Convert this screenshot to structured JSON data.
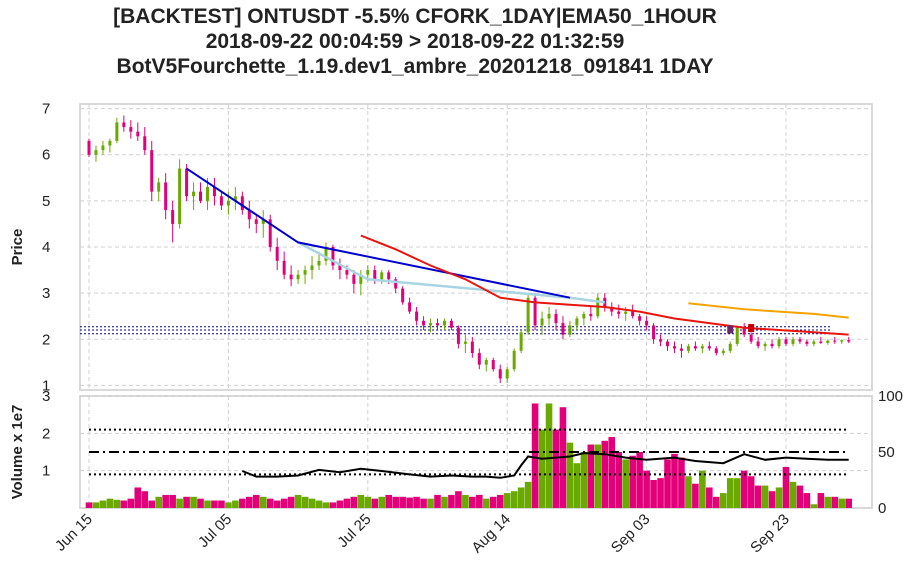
{
  "title_lines": [
    "[BACKTEST] ONTUSDT -5.5% CFORK_1DAY|EMA50_1HOUR",
    "2018-09-22 00:04:59 > 2018-09-22 01:32:59",
    "BotV5Fourchette_1.19.dev1_ambre_20201218_091841 1DAY"
  ],
  "colors": {
    "up": "#6aaa00",
    "down": "#e2007a",
    "trend": "#0000cc",
    "trend_light": "#a9d5e2",
    "ema_red": "#e8140e",
    "ema_orange": "#f5a300",
    "level_dash": "#00008b",
    "grid": "#d0d0d0"
  },
  "chart_data": [
    {
      "type": "candlestick",
      "ylabel": "Price",
      "ylim": [
        0.9,
        7.1
      ],
      "yticks": [
        1,
        2,
        3,
        4,
        5,
        6,
        7
      ],
      "xticks": [
        "Jun 15",
        "Jul 05",
        "Jul 25",
        "Aug 14",
        "Sep 03",
        "Sep 23"
      ],
      "xtick_days": [
        1,
        21,
        41,
        61,
        81,
        101
      ],
      "horizontal_levels": [
        2.27,
        2.2,
        2.12
      ],
      "trend_line": {
        "x": [
          15,
          31,
          70
        ],
        "y": [
          5.7,
          4.1,
          2.9
        ]
      },
      "trend_line_light": {
        "x": [
          31,
          41,
          70,
          75
        ],
        "y": [
          4.1,
          3.3,
          2.9,
          2.8
        ]
      },
      "ema_red": {
        "x": [
          40,
          45,
          50,
          55,
          60,
          65,
          70,
          75,
          80,
          85,
          90,
          95,
          100,
          105,
          110
        ],
        "y": [
          4.25,
          3.95,
          3.6,
          3.3,
          2.9,
          2.8,
          2.75,
          2.7,
          2.6,
          2.45,
          2.35,
          2.25,
          2.2,
          2.15,
          2.1
        ]
      },
      "ema_orange": {
        "x": [
          87,
          95,
          105,
          110
        ],
        "y": [
          2.78,
          2.65,
          2.55,
          2.47
        ]
      },
      "markers": [
        {
          "x": 96,
          "y": 2.2,
          "style": "red-square"
        },
        {
          "x": 93,
          "y": 2.17,
          "style": "purple-square"
        }
      ],
      "candles_ohlc": [
        [
          6.3,
          6.35,
          5.95,
          6.0
        ],
        [
          6.0,
          6.2,
          5.85,
          6.1
        ],
        [
          6.1,
          6.3,
          6.0,
          6.2
        ],
        [
          6.2,
          6.35,
          6.05,
          6.3
        ],
        [
          6.3,
          6.8,
          6.25,
          6.7
        ],
        [
          6.7,
          6.85,
          6.5,
          6.6
        ],
        [
          6.6,
          6.75,
          6.35,
          6.5
        ],
        [
          6.5,
          6.7,
          6.3,
          6.4
        ],
        [
          6.4,
          6.6,
          6.0,
          6.1
        ],
        [
          6.1,
          6.3,
          5.0,
          5.2
        ],
        [
          5.2,
          5.5,
          5.0,
          5.4
        ],
        [
          5.4,
          5.6,
          4.6,
          4.8
        ],
        [
          4.8,
          5.0,
          4.1,
          4.5
        ],
        [
          4.5,
          5.9,
          4.4,
          5.7
        ],
        [
          5.7,
          5.8,
          5.0,
          5.1
        ],
        [
          5.1,
          5.4,
          4.8,
          5.2
        ],
        [
          5.2,
          5.4,
          4.95,
          5.0
        ],
        [
          5.0,
          5.5,
          4.8,
          5.3
        ],
        [
          5.3,
          5.5,
          4.9,
          5.1
        ],
        [
          5.1,
          5.2,
          4.8,
          4.9
        ],
        [
          4.9,
          5.2,
          4.7,
          5.0
        ],
        [
          5.0,
          5.3,
          4.8,
          5.1
        ],
        [
          5.1,
          5.2,
          4.7,
          4.8
        ],
        [
          4.8,
          5.0,
          4.4,
          4.6
        ],
        [
          4.6,
          4.7,
          4.3,
          4.5
        ],
        [
          4.5,
          4.8,
          4.2,
          4.6
        ],
        [
          4.6,
          4.7,
          3.9,
          4.0
        ],
        [
          4.0,
          4.2,
          3.5,
          3.7
        ],
        [
          3.7,
          3.9,
          3.3,
          3.4
        ],
        [
          3.4,
          3.6,
          3.15,
          3.3
        ],
        [
          3.3,
          3.5,
          3.2,
          3.4
        ],
        [
          3.4,
          3.6,
          3.2,
          3.5
        ],
        [
          3.5,
          3.8,
          3.3,
          3.6
        ],
        [
          3.6,
          3.9,
          3.5,
          3.7
        ],
        [
          3.7,
          4.1,
          3.6,
          4.0
        ],
        [
          4.0,
          4.05,
          3.5,
          3.6
        ],
        [
          3.6,
          3.75,
          3.3,
          3.5
        ],
        [
          3.5,
          3.6,
          3.3,
          3.4
        ],
        [
          3.4,
          3.5,
          3.0,
          3.2
        ],
        [
          3.2,
          3.5,
          2.95,
          3.4
        ],
        [
          3.4,
          3.6,
          3.25,
          3.5
        ],
        [
          3.5,
          3.6,
          3.2,
          3.3
        ],
        [
          3.3,
          3.5,
          3.2,
          3.45
        ],
        [
          3.45,
          3.5,
          3.2,
          3.3
        ],
        [
          3.3,
          3.35,
          3.0,
          3.1
        ],
        [
          3.1,
          3.15,
          2.75,
          2.8
        ],
        [
          2.8,
          2.9,
          2.55,
          2.6
        ],
        [
          2.6,
          2.7,
          2.3,
          2.4
        ],
        [
          2.4,
          2.5,
          2.2,
          2.3
        ],
        [
          2.3,
          2.45,
          2.15,
          2.35
        ],
        [
          2.35,
          2.45,
          2.2,
          2.3
        ],
        [
          2.3,
          2.45,
          2.2,
          2.4
        ],
        [
          2.4,
          2.45,
          2.2,
          2.25
        ],
        [
          2.25,
          2.3,
          1.8,
          1.9
        ],
        [
          1.9,
          2.1,
          1.7,
          1.95
        ],
        [
          1.95,
          2.05,
          1.6,
          1.7
        ],
        [
          1.7,
          1.8,
          1.35,
          1.45
        ],
        [
          1.45,
          1.6,
          1.3,
          1.55
        ],
        [
          1.55,
          1.6,
          1.3,
          1.35
        ],
        [
          1.35,
          1.45,
          1.05,
          1.15
        ],
        [
          1.15,
          1.4,
          1.05,
          1.35
        ],
        [
          1.35,
          1.8,
          1.3,
          1.75
        ],
        [
          1.75,
          2.2,
          1.7,
          2.15
        ],
        [
          2.15,
          3.0,
          2.1,
          2.9
        ],
        [
          2.9,
          3.0,
          2.2,
          2.3
        ],
        [
          2.3,
          2.6,
          2.1,
          2.45
        ],
        [
          2.45,
          2.7,
          2.3,
          2.55
        ],
        [
          2.55,
          2.65,
          2.2,
          2.35
        ],
        [
          2.35,
          2.5,
          2.0,
          2.1
        ],
        [
          2.1,
          2.4,
          2.05,
          2.3
        ],
        [
          2.3,
          2.5,
          2.2,
          2.45
        ],
        [
          2.45,
          2.6,
          2.3,
          2.55
        ],
        [
          2.55,
          2.7,
          2.4,
          2.5
        ],
        [
          2.5,
          3.0,
          2.45,
          2.9
        ],
        [
          2.9,
          3.0,
          2.6,
          2.7
        ],
        [
          2.7,
          2.8,
          2.5,
          2.6
        ],
        [
          2.6,
          2.75,
          2.45,
          2.55
        ],
        [
          2.55,
          2.7,
          2.4,
          2.6
        ],
        [
          2.6,
          2.75,
          2.45,
          2.5
        ],
        [
          2.5,
          2.55,
          2.3,
          2.4
        ],
        [
          2.4,
          2.5,
          2.2,
          2.3
        ],
        [
          2.3,
          2.35,
          1.9,
          2.0
        ],
        [
          2.0,
          2.1,
          1.85,
          1.95
        ],
        [
          1.95,
          2.0,
          1.75,
          1.85
        ],
        [
          1.85,
          1.95,
          1.7,
          1.8
        ],
        [
          1.8,
          1.9,
          1.6,
          1.75
        ],
        [
          1.75,
          1.9,
          1.7,
          1.85
        ],
        [
          1.85,
          1.95,
          1.75,
          1.8
        ],
        [
          1.8,
          1.9,
          1.7,
          1.85
        ],
        [
          1.85,
          1.95,
          1.75,
          1.8
        ],
        [
          1.8,
          1.85,
          1.65,
          1.7
        ],
        [
          1.7,
          1.8,
          1.65,
          1.75
        ],
        [
          1.75,
          1.95,
          1.7,
          1.9
        ],
        [
          1.9,
          2.3,
          1.85,
          2.25
        ],
        [
          2.25,
          2.35,
          2.05,
          2.1
        ],
        [
          2.1,
          2.15,
          1.9,
          1.95
        ],
        [
          1.95,
          2.05,
          1.8,
          1.85
        ],
        [
          1.85,
          1.95,
          1.75,
          1.9
        ],
        [
          1.9,
          2.0,
          1.8,
          1.85
        ],
        [
          1.85,
          2.05,
          1.8,
          2.0
        ],
        [
          2.0,
          2.05,
          1.85,
          1.9
        ],
        [
          1.9,
          2.05,
          1.85,
          2.0
        ],
        [
          2.0,
          2.05,
          1.9,
          1.95
        ],
        [
          1.95,
          2.0,
          1.85,
          1.9
        ],
        [
          1.9,
          2.0,
          1.85,
          1.95
        ],
        [
          1.95,
          2.05,
          1.9,
          1.92
        ],
        [
          1.92,
          2.0,
          1.88,
          1.97
        ],
        [
          1.97,
          2.05,
          1.9,
          1.95
        ],
        [
          1.95,
          2.0,
          1.9,
          1.98
        ],
        [
          1.98,
          2.05,
          1.92,
          1.95
        ]
      ]
    },
    {
      "type": "bar",
      "ylabel": "Volume x 1e7",
      "ylim": [
        0,
        3.0
      ],
      "yticks": [
        1,
        2,
        3
      ],
      "right_ylim": [
        0,
        100
      ],
      "right_yticks": [
        0,
        50,
        100
      ],
      "hlines_right": [
        {
          "y": 30,
          "style": "dotted"
        },
        {
          "y": 50,
          "style": "dashdot"
        },
        {
          "y": 70,
          "style": "dotted"
        }
      ],
      "volumes": [
        0.15,
        0.15,
        0.2,
        0.25,
        0.22,
        0.2,
        0.25,
        0.55,
        0.45,
        0.2,
        0.3,
        0.35,
        0.35,
        0.25,
        0.3,
        0.3,
        0.25,
        0.2,
        0.2,
        0.2,
        0.15,
        0.2,
        0.25,
        0.3,
        0.35,
        0.3,
        0.25,
        0.2,
        0.25,
        0.3,
        0.35,
        0.3,
        0.25,
        0.2,
        0.15,
        0.15,
        0.2,
        0.25,
        0.3,
        0.35,
        0.3,
        0.25,
        0.3,
        0.35,
        0.3,
        0.3,
        0.28,
        0.3,
        0.25,
        0.25,
        0.35,
        0.3,
        0.35,
        0.45,
        0.35,
        0.3,
        0.35,
        0.25,
        0.3,
        0.35,
        0.4,
        0.45,
        0.55,
        0.7,
        2.8,
        2.1,
        2.8,
        2.1,
        2.7,
        1.75,
        1.2,
        1.5,
        1.7,
        1.7,
        1.8,
        1.9,
        1.5,
        1.3,
        1.4,
        1.5,
        1.0,
        0.75,
        0.8,
        1.3,
        1.45,
        1.35,
        0.85,
        0.65,
        1.0,
        0.55,
        0.3,
        0.4,
        0.8,
        0.8,
        1.0,
        0.85,
        0.6,
        0.6,
        0.45,
        0.55,
        1.1,
        0.7,
        0.6,
        0.4,
        0.1,
        0.4,
        0.3,
        0.3,
        0.25,
        0.25
      ],
      "indicator_line_right": {
        "x": [
          23,
          25,
          28,
          31,
          34,
          37,
          40,
          43,
          47,
          50,
          53,
          56,
          58,
          60,
          62,
          63,
          64,
          66,
          68,
          70,
          72,
          75,
          78,
          81,
          85,
          88,
          92,
          95,
          98,
          101,
          104,
          107,
          110
        ],
        "y": [
          33,
          28,
          28,
          29,
          34,
          32,
          35,
          33,
          30,
          28,
          29,
          28,
          28,
          27,
          29,
          38,
          46,
          44,
          45,
          46,
          49,
          48,
          45,
          43,
          45,
          42,
          40,
          48,
          43,
          45,
          44,
          43,
          43
        ]
      }
    }
  ]
}
